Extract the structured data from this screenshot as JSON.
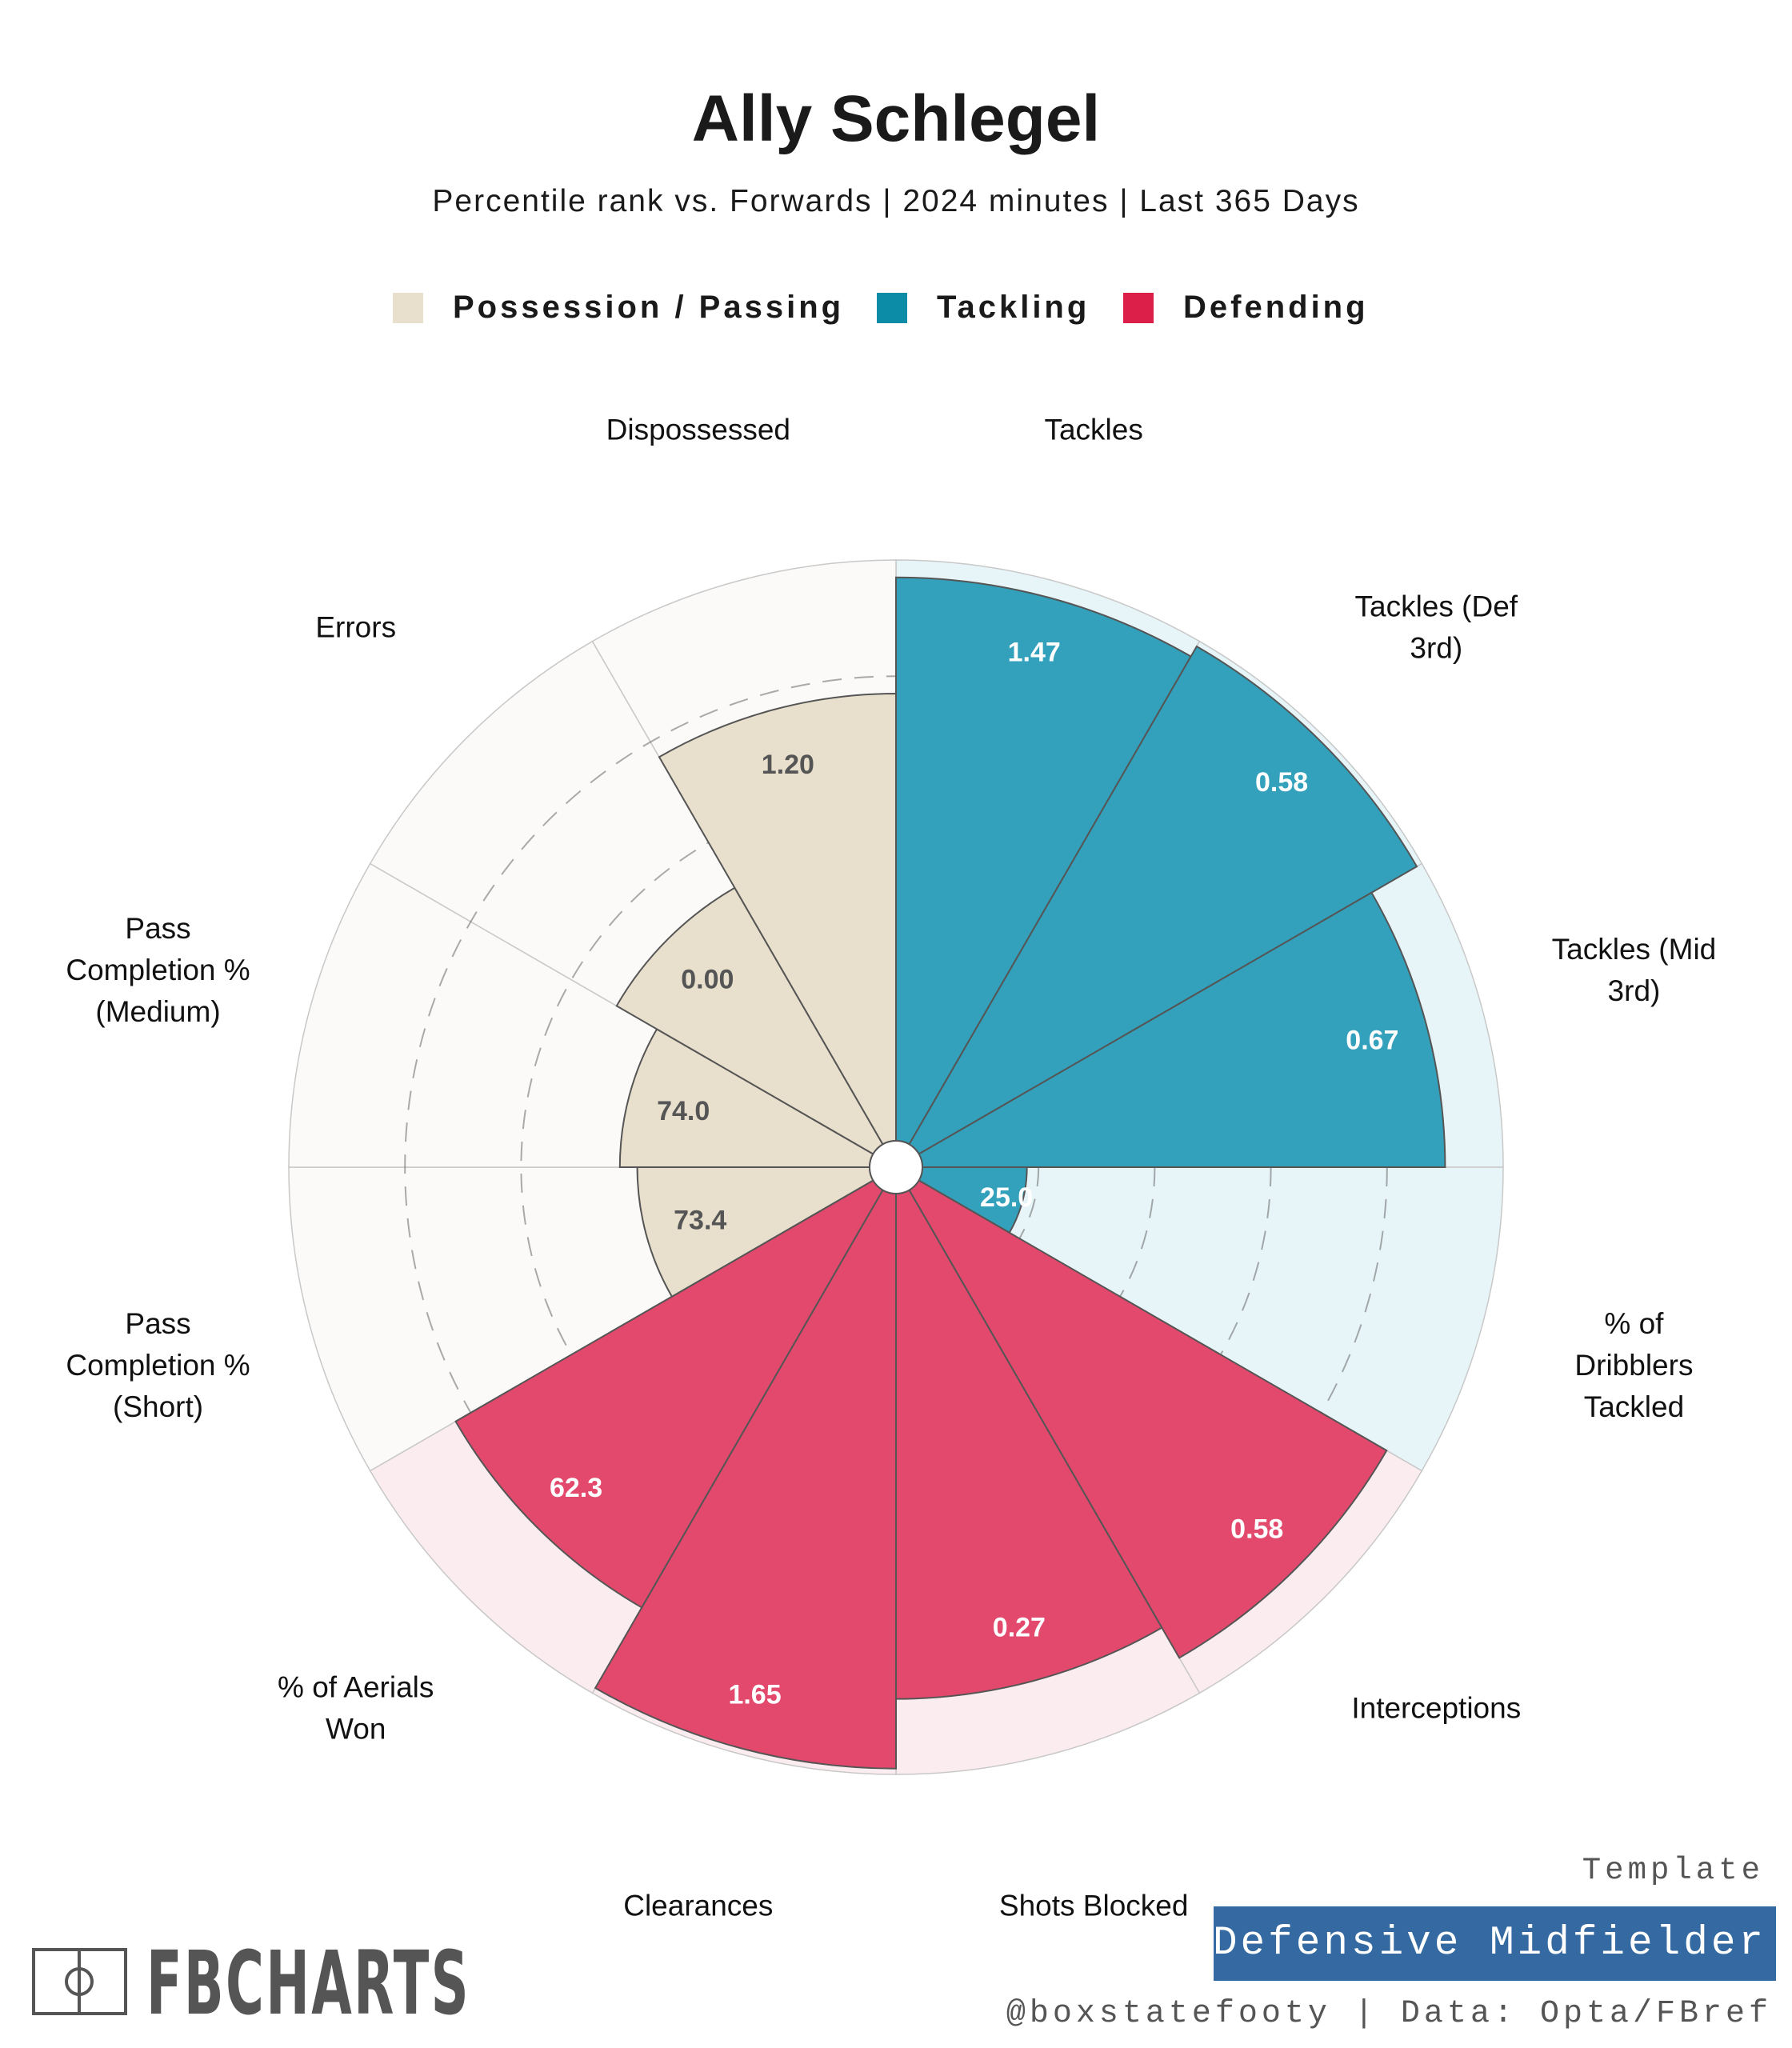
{
  "player": "Ally Schlegel",
  "subtitle": "Percentile rank vs. Forwards | 2024 minutes | Last 365 Days",
  "legend": [
    {
      "label": "Possession / Passing",
      "color": "#e8e0cd"
    },
    {
      "label": "Tackling",
      "color": "#0d8ca8"
    },
    {
      "label": "Defending",
      "color": "#dc1f48"
    }
  ],
  "template": {
    "caption": "Template",
    "name": "Defensive Midfielder"
  },
  "credit": "@boxstatefooty | Data: Opta/FBref",
  "brand": "FBCHARTS",
  "chart_data": {
    "type": "pie",
    "subtype": "polar-bar",
    "scale": [
      0,
      100
    ],
    "series": [
      {
        "name": "Possession / Passing",
        "fill": "#e8e0cd",
        "bg": "#fbfaf8",
        "label_color": "#555555"
      },
      {
        "name": "Tackling",
        "fill": "#33a1bb",
        "bg": "#e8f5f8",
        "label_color": "#ffffff"
      },
      {
        "name": "Defending",
        "fill": "#e2496c",
        "bg": "#fbecef",
        "label_color": "#ffffff"
      }
    ],
    "categories": [
      {
        "label": "Tackles",
        "group": "Tackling",
        "percentile": 97,
        "value": "1.47"
      },
      {
        "label": "Tackles (Def 3rd)",
        "group": "Tackling",
        "percentile": 99,
        "value": "0.58"
      },
      {
        "label": "Tackles (Mid 3rd)",
        "group": "Tackling",
        "percentile": 90,
        "value": "0.67"
      },
      {
        "label": "% of Dribblers Tackled",
        "group": "Tackling",
        "percentile": 18,
        "value": "25.0"
      },
      {
        "label": "Interceptions",
        "group": "Defending",
        "percentile": 93,
        "value": "0.58"
      },
      {
        "label": "Shots Blocked",
        "group": "Defending",
        "percentile": 87,
        "value": "0.27"
      },
      {
        "label": "Clearances",
        "group": "Defending",
        "percentile": 99,
        "value": "1.65"
      },
      {
        "label": "% of Aerials Won",
        "group": "Defending",
        "percentile": 83,
        "value": "62.3"
      },
      {
        "label": "Pass Completion % (Short)",
        "group": "Possession / Passing",
        "percentile": 40,
        "value": "73.4"
      },
      {
        "label": "Pass Completion % (Medium)",
        "group": "Possession / Passing",
        "percentile": 43,
        "value": "74.0"
      },
      {
        "label": "Errors",
        "group": "Possession / Passing",
        "percentile": 51,
        "value": "0.00"
      },
      {
        "label": "Dispossessed",
        "group": "Possession / Passing",
        "percentile": 77,
        "value": "1.20"
      }
    ],
    "gridlines": [
      20,
      40,
      60,
      80
    ]
  }
}
